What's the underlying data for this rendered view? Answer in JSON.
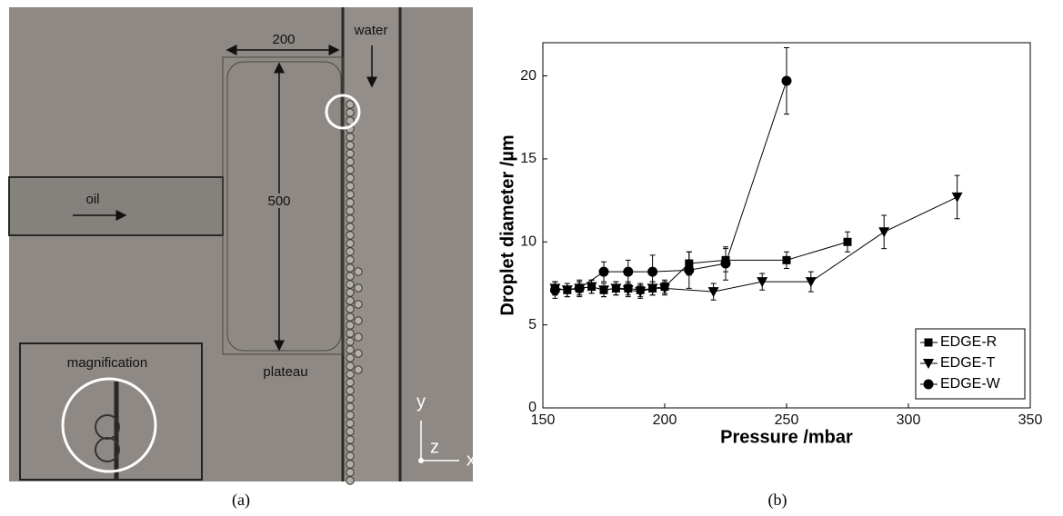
{
  "image_panel": {
    "width_label": "200",
    "inlet_label": "water",
    "oil_label": "oil",
    "height_label": "500",
    "plateau_label": "plateau",
    "inset_label": "magnification",
    "axis_y": "y",
    "axis_z": "z",
    "axis_x": "x"
  },
  "captions": [
    "(a)",
    "(b)"
  ],
  "chart_data": {
    "type": "line",
    "xlabel": "Pressure /mbar",
    "ylabel": "Droplet diameter /µm",
    "xlim": [
      150,
      350
    ],
    "xticks": [
      150,
      200,
      250,
      300,
      350
    ],
    "ylim": [
      0,
      22
    ],
    "yticks": [
      0,
      5,
      10,
      15,
      20
    ],
    "legend": "lower right",
    "series": [
      {
        "name": "EDGE-R",
        "color": "#000000",
        "marker": "square",
        "x": [
          155,
          160,
          165,
          170,
          175,
          180,
          185,
          190,
          195,
          200,
          210,
          225,
          250,
          275
        ],
        "values": [
          7.2,
          7.1,
          7.2,
          7.3,
          7.1,
          7.2,
          7.2,
          7.1,
          7.2,
          7.3,
          8.7,
          8.9,
          8.9,
          10.0
        ],
        "errors": [
          0.4,
          0.4,
          0.4,
          0.4,
          0.4,
          0.4,
          0.4,
          0.4,
          0.4,
          0.4,
          0.7,
          0.7,
          0.5,
          0.6
        ]
      },
      {
        "name": "EDGE-T",
        "color": "#000000",
        "marker": "triangle-down",
        "x": [
          155,
          160,
          165,
          170,
          175,
          180,
          185,
          190,
          195,
          200,
          220,
          240,
          260,
          290,
          320
        ],
        "values": [
          7.2,
          7.1,
          7.2,
          7.3,
          7.1,
          7.2,
          7.1,
          7.0,
          7.2,
          7.2,
          7.0,
          7.6,
          7.6,
          10.6,
          12.7
        ],
        "errors": [
          0.4,
          0.4,
          0.4,
          0.4,
          0.4,
          0.4,
          0.4,
          0.4,
          0.4,
          0.4,
          0.5,
          0.5,
          0.6,
          1.0,
          1.3
        ]
      },
      {
        "name": "EDGE-W",
        "color": "#000000",
        "marker": "circle",
        "x": [
          155,
          165,
          175,
          185,
          195,
          210,
          225,
          250
        ],
        "values": [
          7.1,
          7.2,
          8.2,
          8.2,
          8.2,
          8.3,
          8.7,
          19.7
        ],
        "errors": [
          0.5,
          0.5,
          0.6,
          0.7,
          1.0,
          1.1,
          1.0,
          2.0
        ]
      }
    ]
  }
}
